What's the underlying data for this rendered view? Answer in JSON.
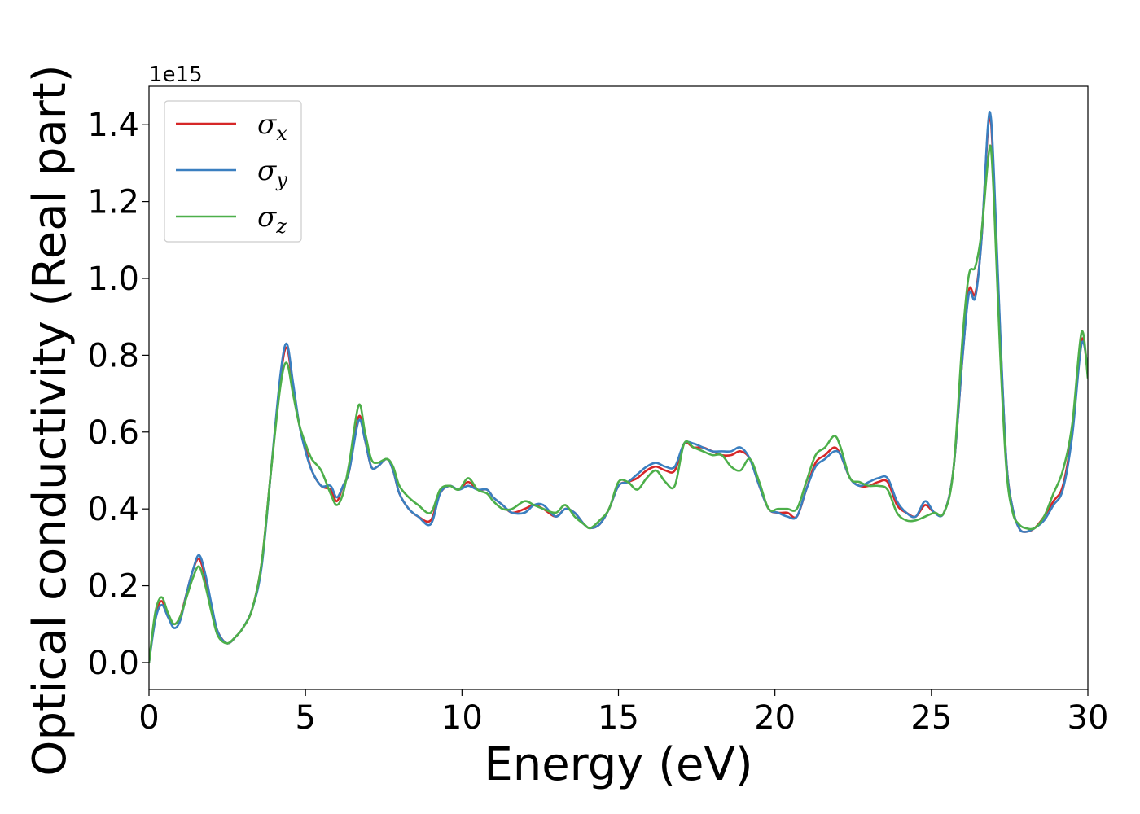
{
  "chart_data": {
    "type": "line",
    "xlabel": "Energy (eV)",
    "ylabel": "Optical conductivity (Real part)",
    "y_offset_label": "1e15",
    "xlim": [
      0,
      30
    ],
    "ylim": [
      -0.07,
      1.5
    ],
    "x_ticks": [
      0,
      5,
      10,
      15,
      20,
      25,
      30
    ],
    "y_ticks": [
      0.0,
      0.2,
      0.4,
      0.6,
      0.8,
      1.0,
      1.2,
      1.4
    ],
    "y_tick_labels": [
      "0.0",
      "0.2",
      "0.4",
      "0.6",
      "0.8",
      "1.0",
      "1.2",
      "1.4"
    ],
    "grid": false,
    "legend_position": "top-left",
    "series": [
      {
        "name": "σx",
        "symbol": "σ",
        "subscript": "x",
        "color": "#d62728",
        "x": [
          0,
          0.2,
          0.4,
          0.6,
          0.8,
          1.0,
          1.2,
          1.4,
          1.6,
          1.8,
          2.0,
          2.2,
          2.5,
          2.8,
          3.0,
          3.3,
          3.6,
          3.9,
          4.2,
          4.4,
          4.6,
          4.8,
          5.0,
          5.2,
          5.5,
          5.8,
          6.0,
          6.2,
          6.4,
          6.7,
          6.9,
          7.1,
          7.3,
          7.6,
          7.8,
          8.0,
          8.3,
          8.6,
          9.0,
          9.3,
          9.6,
          9.9,
          10.2,
          10.5,
          10.8,
          11.0,
          11.3,
          11.6,
          12.0,
          12.3,
          12.6,
          13.0,
          13.3,
          13.6,
          13.9,
          14.1,
          14.4,
          14.7,
          15.0,
          15.3,
          15.6,
          15.9,
          16.2,
          16.5,
          16.8,
          17.1,
          17.4,
          17.7,
          18.0,
          18.3,
          18.6,
          18.9,
          19.2,
          19.5,
          19.8,
          20.1,
          20.4,
          20.7,
          21.0,
          21.3,
          21.6,
          21.9,
          22.1,
          22.4,
          22.7,
          23.0,
          23.3,
          23.6,
          23.9,
          24.2,
          24.5,
          24.8,
          25.1,
          25.4,
          25.7,
          26.0,
          26.2,
          26.4,
          26.6,
          26.8,
          26.9,
          27.0,
          27.2,
          27.4,
          27.6,
          27.8,
          28.0,
          28.3,
          28.6,
          28.9,
          29.2,
          29.5,
          29.8,
          30.0
        ],
        "y": [
          0.0,
          0.12,
          0.16,
          0.12,
          0.1,
          0.12,
          0.18,
          0.24,
          0.27,
          0.22,
          0.14,
          0.08,
          0.05,
          0.07,
          0.09,
          0.14,
          0.26,
          0.5,
          0.74,
          0.82,
          0.72,
          0.62,
          0.56,
          0.5,
          0.46,
          0.45,
          0.42,
          0.46,
          0.5,
          0.64,
          0.58,
          0.51,
          0.51,
          0.53,
          0.5,
          0.44,
          0.4,
          0.38,
          0.37,
          0.44,
          0.46,
          0.45,
          0.47,
          0.45,
          0.45,
          0.43,
          0.41,
          0.39,
          0.4,
          0.41,
          0.4,
          0.38,
          0.4,
          0.39,
          0.36,
          0.35,
          0.36,
          0.4,
          0.46,
          0.47,
          0.48,
          0.5,
          0.51,
          0.5,
          0.5,
          0.57,
          0.56,
          0.56,
          0.55,
          0.54,
          0.54,
          0.55,
          0.53,
          0.46,
          0.4,
          0.39,
          0.39,
          0.38,
          0.45,
          0.52,
          0.54,
          0.56,
          0.54,
          0.48,
          0.46,
          0.46,
          0.47,
          0.47,
          0.41,
          0.39,
          0.38,
          0.41,
          0.39,
          0.39,
          0.5,
          0.8,
          0.97,
          0.96,
          1.1,
          1.38,
          1.41,
          1.25,
          0.85,
          0.52,
          0.4,
          0.35,
          0.34,
          0.35,
          0.38,
          0.42,
          0.46,
          0.6,
          0.84,
          0.75
        ]
      },
      {
        "name": "σy",
        "symbol": "σ",
        "subscript": "y",
        "color": "#3a7fc0",
        "x": [
          0,
          0.2,
          0.4,
          0.6,
          0.8,
          1.0,
          1.2,
          1.4,
          1.6,
          1.8,
          2.0,
          2.2,
          2.5,
          2.8,
          3.0,
          3.3,
          3.6,
          3.9,
          4.2,
          4.4,
          4.6,
          4.8,
          5.0,
          5.2,
          5.5,
          5.8,
          6.0,
          6.2,
          6.4,
          6.7,
          6.9,
          7.1,
          7.3,
          7.6,
          7.8,
          8.0,
          8.3,
          8.6,
          9.0,
          9.3,
          9.6,
          9.9,
          10.2,
          10.5,
          10.8,
          11.0,
          11.3,
          11.6,
          12.0,
          12.3,
          12.6,
          13.0,
          13.3,
          13.6,
          13.9,
          14.1,
          14.4,
          14.7,
          15.0,
          15.3,
          15.6,
          15.9,
          16.2,
          16.5,
          16.8,
          17.1,
          17.4,
          17.7,
          18.0,
          18.3,
          18.6,
          18.9,
          19.2,
          19.5,
          19.8,
          20.1,
          20.4,
          20.7,
          21.0,
          21.3,
          21.6,
          21.9,
          22.1,
          22.4,
          22.7,
          23.0,
          23.3,
          23.6,
          23.9,
          24.2,
          24.5,
          24.8,
          25.1,
          25.4,
          25.7,
          26.0,
          26.2,
          26.4,
          26.6,
          26.8,
          26.9,
          27.0,
          27.2,
          27.4,
          27.6,
          27.8,
          28.0,
          28.3,
          28.6,
          28.9,
          29.2,
          29.5,
          29.8,
          30.0
        ],
        "y": [
          0.0,
          0.11,
          0.15,
          0.12,
          0.09,
          0.11,
          0.18,
          0.24,
          0.28,
          0.23,
          0.15,
          0.08,
          0.05,
          0.07,
          0.09,
          0.14,
          0.25,
          0.5,
          0.75,
          0.83,
          0.73,
          0.62,
          0.55,
          0.5,
          0.46,
          0.46,
          0.43,
          0.46,
          0.5,
          0.63,
          0.58,
          0.51,
          0.51,
          0.53,
          0.5,
          0.44,
          0.4,
          0.38,
          0.36,
          0.44,
          0.46,
          0.45,
          0.46,
          0.45,
          0.45,
          0.43,
          0.41,
          0.39,
          0.39,
          0.41,
          0.41,
          0.38,
          0.4,
          0.39,
          0.36,
          0.35,
          0.36,
          0.4,
          0.46,
          0.47,
          0.49,
          0.51,
          0.52,
          0.51,
          0.51,
          0.57,
          0.57,
          0.56,
          0.55,
          0.55,
          0.55,
          0.56,
          0.53,
          0.46,
          0.4,
          0.39,
          0.38,
          0.38,
          0.45,
          0.51,
          0.53,
          0.55,
          0.54,
          0.48,
          0.46,
          0.47,
          0.48,
          0.48,
          0.42,
          0.39,
          0.38,
          0.42,
          0.39,
          0.39,
          0.5,
          0.8,
          0.96,
          0.95,
          1.1,
          1.39,
          1.42,
          1.27,
          0.86,
          0.52,
          0.4,
          0.35,
          0.34,
          0.35,
          0.37,
          0.41,
          0.45,
          0.59,
          0.83,
          0.76
        ]
      },
      {
        "name": "σz",
        "symbol": "σ",
        "subscript": "z",
        "color": "#4daf4a",
        "x": [
          0,
          0.2,
          0.4,
          0.6,
          0.8,
          1.0,
          1.2,
          1.4,
          1.6,
          1.8,
          2.0,
          2.2,
          2.5,
          2.8,
          3.0,
          3.3,
          3.6,
          3.9,
          4.2,
          4.4,
          4.6,
          4.8,
          5.0,
          5.2,
          5.5,
          5.8,
          6.0,
          6.2,
          6.4,
          6.7,
          6.9,
          7.1,
          7.3,
          7.6,
          7.8,
          8.0,
          8.3,
          8.6,
          9.0,
          9.3,
          9.6,
          9.9,
          10.2,
          10.5,
          10.8,
          11.0,
          11.3,
          11.6,
          12.0,
          12.3,
          12.6,
          13.0,
          13.3,
          13.6,
          13.9,
          14.1,
          14.4,
          14.7,
          15.0,
          15.3,
          15.6,
          15.9,
          16.2,
          16.5,
          16.8,
          17.1,
          17.4,
          17.7,
          18.0,
          18.3,
          18.6,
          18.9,
          19.2,
          19.5,
          19.8,
          20.1,
          20.4,
          20.7,
          21.0,
          21.3,
          21.6,
          21.9,
          22.1,
          22.4,
          22.7,
          23.0,
          23.3,
          23.6,
          23.9,
          24.2,
          24.5,
          24.8,
          25.1,
          25.4,
          25.7,
          26.0,
          26.2,
          26.4,
          26.6,
          26.8,
          26.9,
          27.0,
          27.2,
          27.4,
          27.6,
          27.8,
          28.0,
          28.3,
          28.6,
          28.9,
          29.2,
          29.5,
          29.8,
          30.0
        ],
        "y": [
          0.0,
          0.13,
          0.17,
          0.13,
          0.1,
          0.12,
          0.17,
          0.22,
          0.25,
          0.2,
          0.13,
          0.07,
          0.05,
          0.07,
          0.09,
          0.14,
          0.26,
          0.5,
          0.72,
          0.78,
          0.7,
          0.62,
          0.57,
          0.53,
          0.5,
          0.44,
          0.41,
          0.44,
          0.52,
          0.67,
          0.6,
          0.53,
          0.52,
          0.53,
          0.51,
          0.46,
          0.43,
          0.41,
          0.39,
          0.45,
          0.46,
          0.45,
          0.48,
          0.45,
          0.44,
          0.42,
          0.4,
          0.4,
          0.42,
          0.41,
          0.4,
          0.39,
          0.41,
          0.38,
          0.36,
          0.35,
          0.37,
          0.4,
          0.47,
          0.47,
          0.45,
          0.48,
          0.5,
          0.47,
          0.46,
          0.57,
          0.56,
          0.55,
          0.54,
          0.54,
          0.51,
          0.5,
          0.53,
          0.47,
          0.4,
          0.4,
          0.4,
          0.4,
          0.47,
          0.54,
          0.56,
          0.59,
          0.56,
          0.48,
          0.47,
          0.46,
          0.46,
          0.45,
          0.39,
          0.37,
          0.37,
          0.38,
          0.39,
          0.39,
          0.5,
          0.85,
          1.01,
          1.03,
          1.12,
          1.3,
          1.34,
          1.2,
          0.8,
          0.5,
          0.39,
          0.36,
          0.35,
          0.35,
          0.38,
          0.44,
          0.5,
          0.62,
          0.86,
          0.74
        ]
      }
    ]
  }
}
